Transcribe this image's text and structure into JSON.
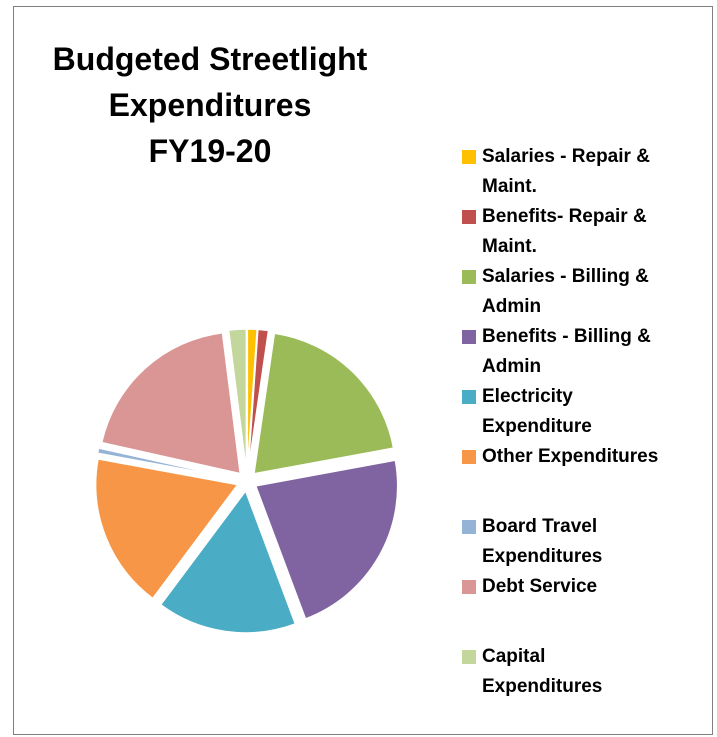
{
  "chart_data": {
    "type": "pie",
    "title_lines": [
      "Budgeted Streetlight",
      "Expenditures",
      "FY19-20"
    ],
    "legend_position": "right",
    "series": [
      {
        "name": "Salaries - Repair & Maint.",
        "value": 1.1,
        "color": "#ffc000"
      },
      {
        "name": "Benefits- Repair & Maint.",
        "value": 1.2,
        "color": "#c0504d"
      },
      {
        "name": "Salaries - Billing & Admin",
        "value": 19.8,
        "color": "#9bbb59"
      },
      {
        "name": "Benefits - Billing & Admin",
        "value": 22.2,
        "color": "#8064a2"
      },
      {
        "name": "Electricity Expenditure",
        "value": 15.9,
        "color": "#4bacc6"
      },
      {
        "name": "Other Expenditures",
        "value": 17.7,
        "color": "#f79646"
      },
      {
        "name": "Board Travel Expenditures",
        "value": 0.6,
        "color": "#95b3d7"
      },
      {
        "name": "Debt Service",
        "value": 19.5,
        "color": "#d99694"
      },
      {
        "name": "Capital Expenditures",
        "value": 2.0,
        "color": "#c3d69b"
      }
    ],
    "legend_lines": [
      [
        "Salaries - Repair &",
        "Maint."
      ],
      [
        "Benefits- Repair &",
        "Maint."
      ],
      [
        "Salaries - Billing &",
        "Admin"
      ],
      [
        "Benefits - Billing &",
        "Admin"
      ],
      [
        "Electricity",
        "Expenditure"
      ],
      [
        "Other Expenditures"
      ],
      [
        "Board Travel",
        "Expenditures"
      ],
      [
        "Debt Service"
      ],
      [
        "Capital",
        "Expenditures"
      ]
    ]
  }
}
